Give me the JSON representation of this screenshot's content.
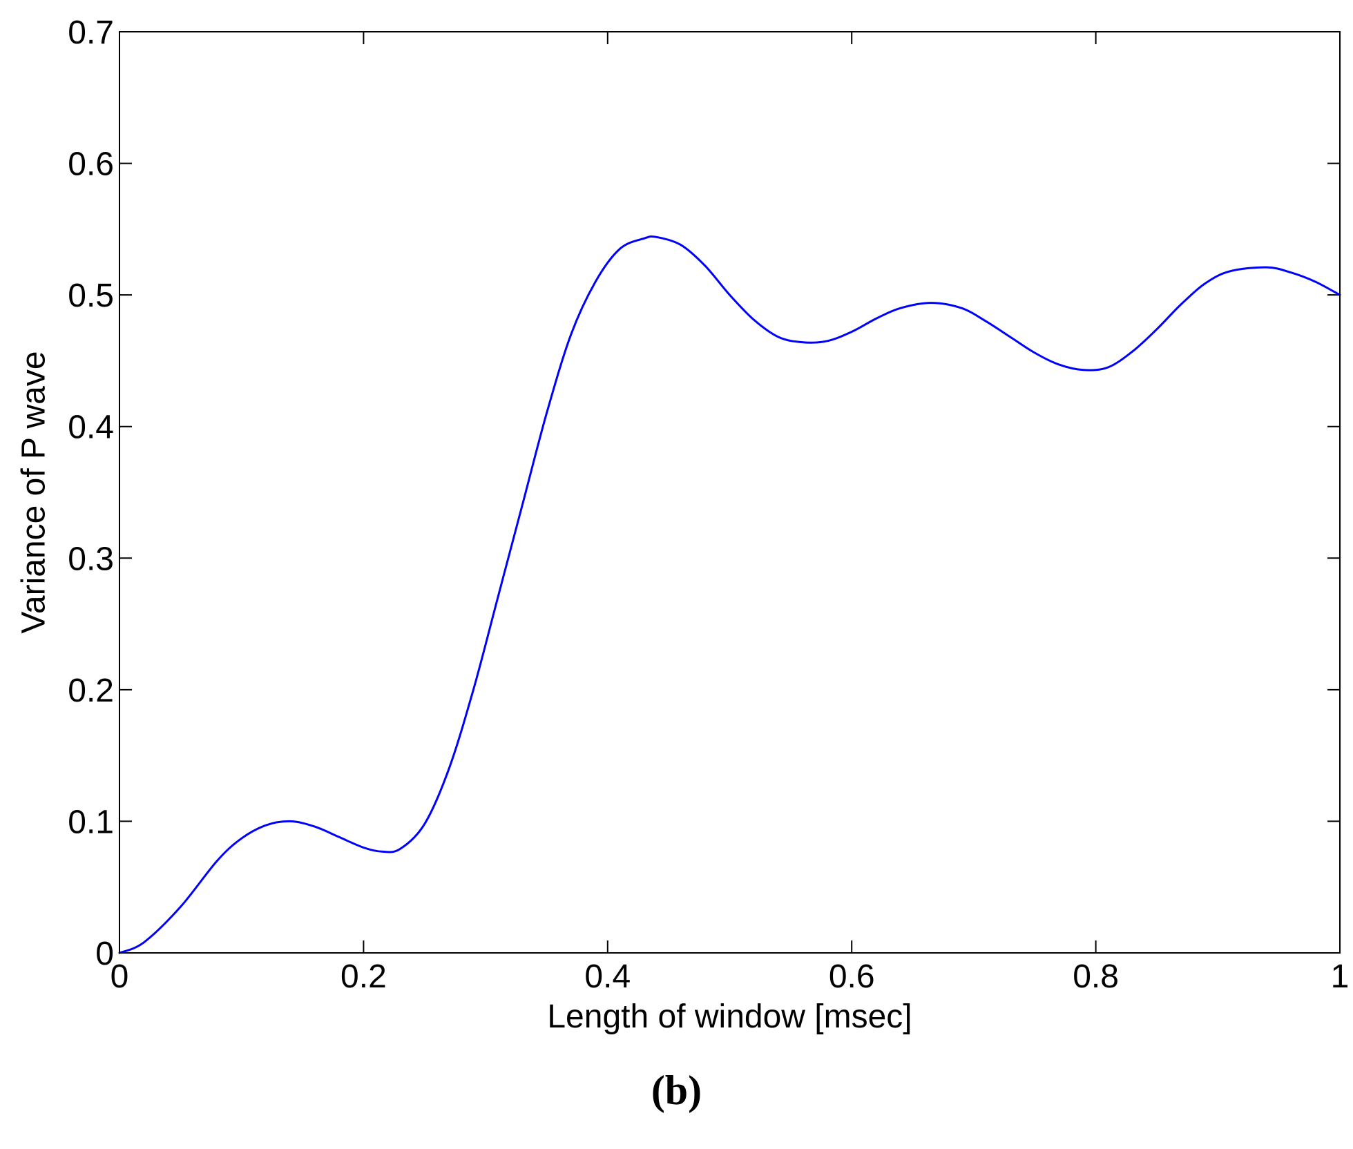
{
  "chart_data": {
    "type": "line",
    "xlabel": "Length of window [msec]",
    "ylabel": "Variance of P wave",
    "xlim": [
      0,
      1
    ],
    "ylim": [
      0,
      0.7
    ],
    "x_ticks": [
      "0",
      "0.2",
      "0.4",
      "0.6",
      "0.8",
      "1"
    ],
    "y_ticks": [
      "0",
      "0.1",
      "0.2",
      "0.3",
      "0.4",
      "0.5",
      "0.6",
      "0.7"
    ],
    "grid": false,
    "legend": "none",
    "line_color": "#0000ff",
    "series": [
      {
        "x": [
          0.0,
          0.02,
          0.05,
          0.08,
          0.1,
          0.12,
          0.14,
          0.16,
          0.18,
          0.2,
          0.215,
          0.23,
          0.25,
          0.27,
          0.29,
          0.31,
          0.33,
          0.35,
          0.37,
          0.39,
          0.41,
          0.43,
          0.44,
          0.46,
          0.48,
          0.5,
          0.52,
          0.54,
          0.56,
          0.58,
          0.6,
          0.62,
          0.64,
          0.665,
          0.69,
          0.71,
          0.73,
          0.75,
          0.77,
          0.79,
          0.81,
          0.83,
          0.85,
          0.87,
          0.89,
          0.91,
          0.94,
          0.96,
          0.98,
          1.0
        ],
        "y": [
          0.0,
          0.008,
          0.035,
          0.07,
          0.087,
          0.097,
          0.1,
          0.096,
          0.088,
          0.08,
          0.077,
          0.079,
          0.098,
          0.14,
          0.2,
          0.27,
          0.34,
          0.41,
          0.47,
          0.51,
          0.535,
          0.543,
          0.544,
          0.538,
          0.522,
          0.5,
          0.481,
          0.468,
          0.464,
          0.465,
          0.472,
          0.482,
          0.49,
          0.494,
          0.49,
          0.48,
          0.468,
          0.456,
          0.447,
          0.443,
          0.445,
          0.457,
          0.474,
          0.493,
          0.509,
          0.518,
          0.521,
          0.517,
          0.51,
          0.5
        ]
      }
    ]
  },
  "panel_label": "(b)"
}
